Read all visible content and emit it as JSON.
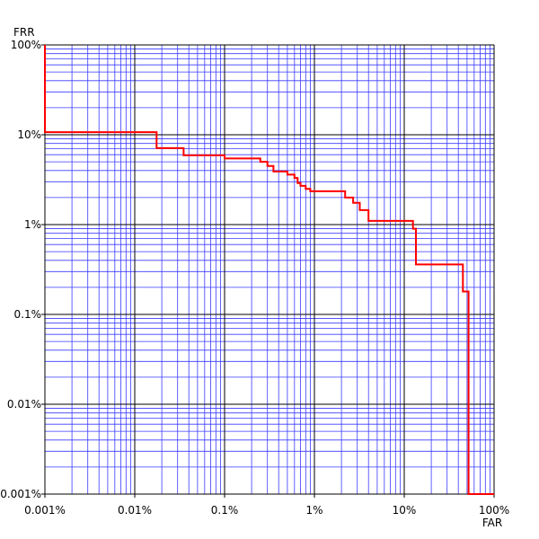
{
  "chart_data": {
    "type": "line",
    "xlabel": "FAR",
    "ylabel": "FRR",
    "x_scale": "log",
    "y_scale": "log",
    "xlim": [
      0.001,
      100
    ],
    "ylim": [
      0.001,
      100
    ],
    "x_ticks": [
      0.001,
      0.01,
      0.1,
      1,
      10,
      100
    ],
    "x_tick_labels": [
      "0.001%",
      "0.01%",
      "0.1%",
      "1%",
      "10%",
      "100%"
    ],
    "y_ticks": [
      0.001,
      0.01,
      0.1,
      1,
      10,
      100
    ],
    "y_tick_labels": [
      "0.001%",
      "0.01%",
      "0.1%",
      "1%",
      "10%",
      "100%"
    ],
    "grid": true,
    "colors": {
      "major_grid": "#000000",
      "minor_grid": "#3a3aff",
      "curve": "#ff0000"
    },
    "series": [
      {
        "x": [
          0.001,
          0.001,
          0.0175,
          0.0175,
          0.035,
          0.035,
          0.1,
          0.1,
          0.25,
          0.25,
          0.3,
          0.3,
          0.35,
          0.35,
          0.5,
          0.5,
          0.6,
          0.6,
          0.65,
          0.65,
          0.7,
          0.7,
          0.8,
          0.8,
          0.9,
          0.9,
          2.2,
          2.2,
          2.7,
          2.7,
          3.2,
          3.2,
          4.0,
          4.0,
          12.5,
          12.5,
          13.5,
          13.5,
          45,
          45,
          52,
          52,
          100
        ],
        "y": [
          100,
          10.7,
          10.7,
          7.1,
          7.1,
          5.9,
          5.9,
          5.45,
          5.45,
          5.0,
          5.0,
          4.5,
          4.5,
          3.9,
          3.9,
          3.6,
          3.6,
          3.3,
          3.3,
          2.9,
          2.9,
          2.7,
          2.7,
          2.5,
          2.5,
          2.35,
          2.35,
          2.0,
          2.0,
          1.75,
          1.75,
          1.45,
          1.45,
          1.1,
          1.1,
          0.9,
          0.9,
          0.36,
          0.36,
          0.18,
          0.18,
          0.001,
          0.001
        ]
      }
    ]
  }
}
